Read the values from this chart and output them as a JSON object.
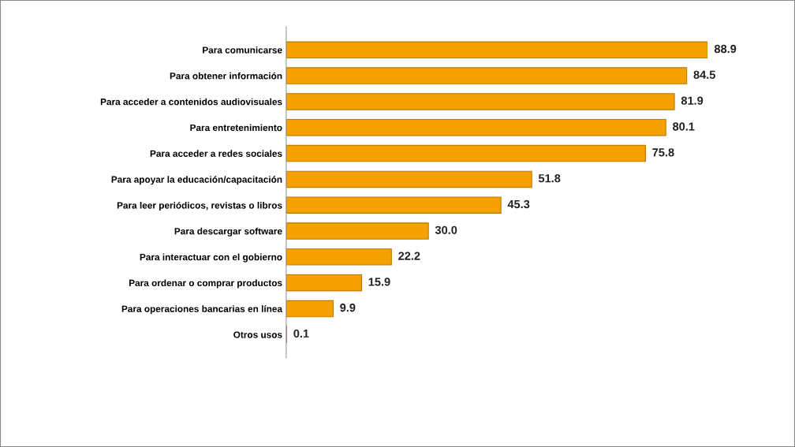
{
  "chart_data": {
    "type": "bar",
    "orientation": "horizontal",
    "categories": [
      "Para comunicarse",
      "Para obtener información",
      "Para acceder a contenidos audiovisuales",
      "Para entretenimiento",
      "Para acceder a redes sociales",
      "Para apoyar la educación/capacitación",
      "Para leer periódicos, revistas o libros",
      "Para descargar software",
      "Para interactuar con el gobierno",
      "Para ordenar o comprar productos",
      "Para operaciones bancarias en línea",
      "Otros usos"
    ],
    "values": [
      88.9,
      84.5,
      81.9,
      80.1,
      75.8,
      51.8,
      45.3,
      30.0,
      22.2,
      15.9,
      9.9,
      0.1
    ],
    "value_labels": [
      "88.9",
      "84.5",
      "81.9",
      "80.1",
      "75.8",
      "51.8",
      "45.3",
      "30.0",
      "22.2",
      "15.9",
      "9.9",
      "0.1"
    ],
    "color": "#f5a100",
    "grid": false,
    "legend": false
  }
}
